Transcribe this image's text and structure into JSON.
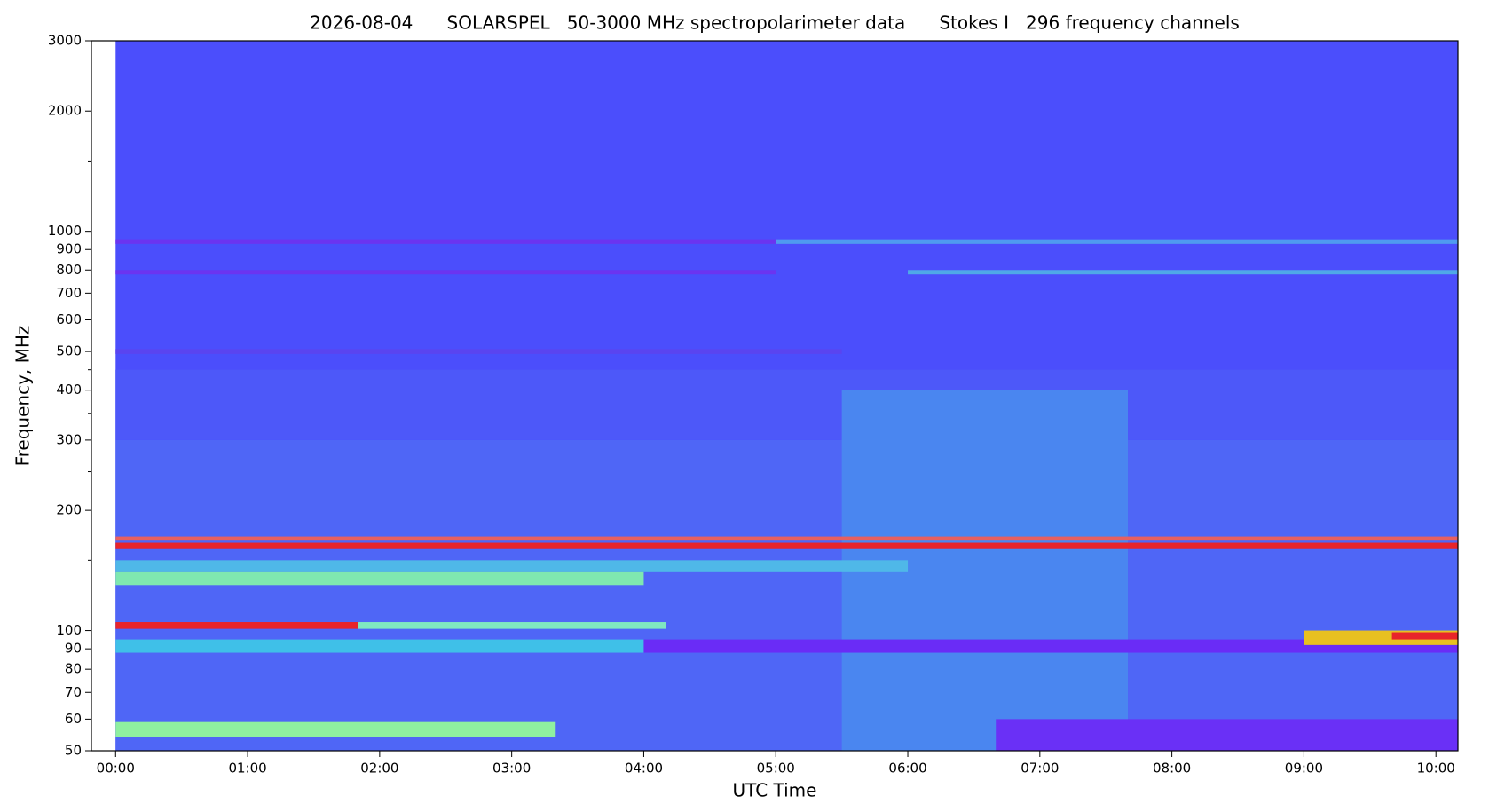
{
  "chart_data": {
    "type": "spectrogram",
    "title": "2026-08-04      SOLARSPEL   50-3000 MHz spectropolarimeter data      Stokes I   296 frequency channels",
    "xlabel": "UTC Time",
    "ylabel": "Frequency, MHz",
    "yscale": "log",
    "background_color": "#4b4efc",
    "xlim": [
      -11,
      610
    ],
    "ylim": [
      50,
      3000
    ],
    "data_x_range": [
      0,
      610
    ],
    "xticks": [
      {
        "value": 0,
        "label": "00:00"
      },
      {
        "value": 60,
        "label": "01:00"
      },
      {
        "value": 120,
        "label": "02:00"
      },
      {
        "value": 180,
        "label": "03:00"
      },
      {
        "value": 240,
        "label": "04:00"
      },
      {
        "value": 300,
        "label": "05:00"
      },
      {
        "value": 360,
        "label": "06:00"
      },
      {
        "value": 420,
        "label": "07:00"
      },
      {
        "value": 480,
        "label": "08:00"
      },
      {
        "value": 540,
        "label": "09:00"
      },
      {
        "value": 600,
        "label": "10:00"
      }
    ],
    "yticks": [
      50,
      60,
      70,
      80,
      90,
      100,
      200,
      300,
      400,
      500,
      600,
      700,
      800,
      900,
      1000,
      2000,
      3000
    ],
    "yticks_minor": [
      150,
      250,
      350,
      450,
      1500
    ],
    "features": [
      {
        "f": [
          50,
          300
        ],
        "t": [
          0,
          610
        ],
        "color": "#4f66f6"
      },
      {
        "f": [
          300,
          450
        ],
        "t": [
          0,
          610
        ],
        "color": "#4d58f9"
      },
      {
        "f": [
          50,
          400
        ],
        "t": [
          330,
          460
        ],
        "color": "#4a86f0"
      },
      {
        "f": [
          930,
          955
        ],
        "t": [
          0,
          300
        ],
        "color": "#6b34f0"
      },
      {
        "f": [
          930,
          955
        ],
        "t": [
          300,
          610
        ],
        "color": "#4f9af0"
      },
      {
        "f": [
          780,
          800
        ],
        "t": [
          0,
          300
        ],
        "color": "#6b34f0"
      },
      {
        "f": [
          780,
          800
        ],
        "t": [
          360,
          610
        ],
        "color": "#4fa8e8"
      },
      {
        "f": [
          493,
          507
        ],
        "t": [
          0,
          330
        ],
        "color": "#5a44f0"
      },
      {
        "f": [
          168,
          172
        ],
        "t": [
          0,
          610
        ],
        "color": "#e86060"
      },
      {
        "f": [
          160,
          166
        ],
        "t": [
          0,
          610
        ],
        "color": "#e8242a"
      },
      {
        "f": [
          140,
          150
        ],
        "t": [
          0,
          360
        ],
        "color": "#4fb8e8"
      },
      {
        "f": [
          130,
          140
        ],
        "t": [
          0,
          240
        ],
        "color": "#7fe8b0"
      },
      {
        "f": [
          101,
          105
        ],
        "t": [
          0,
          110
        ],
        "color": "#e8242a"
      },
      {
        "f": [
          101,
          105
        ],
        "t": [
          110,
          250
        ],
        "color": "#7fe8c0"
      },
      {
        "f": [
          88,
          95
        ],
        "t": [
          0,
          240
        ],
        "color": "#3fc0e8"
      },
      {
        "f": [
          88,
          95
        ],
        "t": [
          240,
          610
        ],
        "color": "#6a2cf6"
      },
      {
        "f": [
          92,
          100
        ],
        "t": [
          540,
          610
        ],
        "color": "#e8c020"
      },
      {
        "f": [
          95,
          99
        ],
        "t": [
          580,
          610
        ],
        "color": "#e8242a"
      },
      {
        "f": [
          54,
          59
        ],
        "t": [
          0,
          200
        ],
        "color": "#8ff0a0"
      },
      {
        "f": [
          50,
          60
        ],
        "t": [
          400,
          610
        ],
        "color": "#6a30f6"
      }
    ]
  }
}
